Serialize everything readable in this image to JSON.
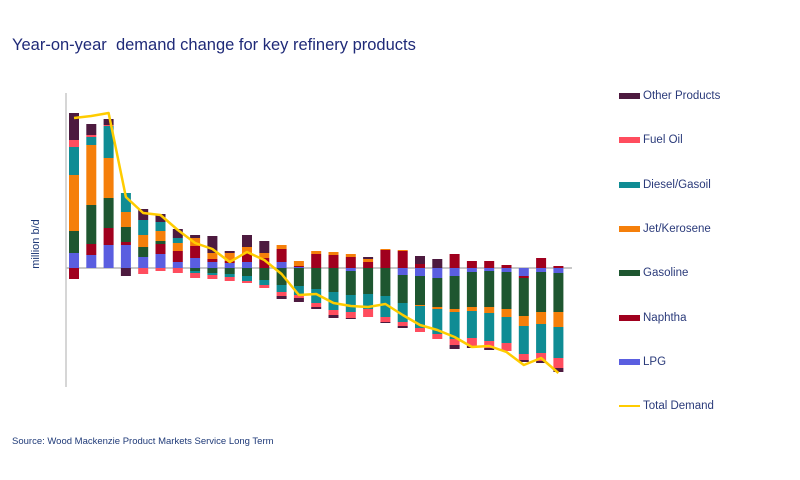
{
  "chart_data": {
    "type": "bar",
    "stacked": true,
    "title": "Year-on-year  demand change for key refinery products",
    "ylabel": "million b/d",
    "xlabel": "",
    "ylim": [
      -1.19,
      1.75
    ],
    "grid": false,
    "legend_position": "right",
    "source": "Source: Wood Mackenzie Product Markets Service Long Term",
    "series": [
      {
        "name": "LPG",
        "color": "#5a5ee0",
        "values": [
          0.15,
          0.13,
          0.23,
          0.23,
          0.11,
          0.14,
          0.06,
          0.1,
          0.06,
          0.05,
          0.06,
          0,
          0.06,
          0.01,
          0,
          0,
          -0.03,
          0,
          0,
          -0.07,
          -0.08,
          -0.1,
          -0.08,
          -0.04,
          -0.03,
          -0.04,
          -0.08,
          -0.04,
          -0.05
        ]
      },
      {
        "name": "Naphtha",
        "color": "#a0001e",
        "values": [
          -0.11,
          0.11,
          0.17,
          0.03,
          0,
          0.1,
          0.11,
          0.12,
          0.03,
          0.02,
          0.09,
          0.1,
          0.13,
          0.01,
          0.14,
          0.13,
          0.11,
          0.06,
          0.18,
          0.17,
          0.04,
          0,
          0.14,
          0.07,
          0.07,
          0.03,
          -0.02,
          0.1,
          0.02
        ]
      },
      {
        "name": "Gasoline",
        "color": "#1e5630",
        "values": [
          0.22,
          0.39,
          0.3,
          0.15,
          0.1,
          0.03,
          0,
          -0.03,
          -0.05,
          -0.06,
          -0.08,
          -0.12,
          -0.17,
          -0.18,
          -0.21,
          -0.24,
          -0.24,
          -0.26,
          -0.28,
          -0.28,
          -0.29,
          -0.29,
          -0.33,
          -0.35,
          -0.36,
          -0.37,
          -0.38,
          -0.4,
          -0.39
        ]
      },
      {
        "name": "Jet/Kerosene",
        "color": "#f57f0a",
        "values": [
          0.56,
          0.6,
          0.4,
          0.15,
          0.12,
          0.1,
          0.08,
          0.08,
          0.06,
          0.08,
          0.06,
          0.05,
          0.04,
          0.05,
          0.03,
          0.03,
          0.03,
          0.03,
          0.01,
          0.01,
          -0.01,
          -0.02,
          -0.03,
          -0.04,
          -0.06,
          -0.08,
          -0.1,
          -0.12,
          -0.15
        ]
      },
      {
        "name": "Diesel/Gasoil",
        "color": "#0f8c94",
        "values": [
          0.28,
          0.08,
          0.32,
          0.19,
          0.15,
          0.09,
          0.05,
          -0.02,
          -0.02,
          -0.03,
          -0.05,
          -0.05,
          -0.07,
          -0.09,
          -0.14,
          -0.18,
          -0.17,
          -0.15,
          -0.21,
          -0.19,
          -0.22,
          -0.25,
          -0.27,
          -0.27,
          -0.28,
          -0.26,
          -0.28,
          -0.29,
          -0.31
        ]
      },
      {
        "name": "Fuel Oil",
        "color": "#ff4d5e",
        "values": [
          0.07,
          0.02,
          0.01,
          0,
          -0.06,
          -0.03,
          -0.05,
          -0.05,
          -0.04,
          -0.04,
          -0.02,
          -0.03,
          -0.04,
          -0.03,
          -0.04,
          -0.05,
          -0.06,
          -0.08,
          -0.05,
          -0.04,
          -0.04,
          -0.05,
          -0.06,
          -0.08,
          -0.07,
          -0.08,
          -0.06,
          -0.08,
          -0.1
        ]
      },
      {
        "name": "Other Products",
        "color": "#4d1a3f",
        "values": [
          0.27,
          0.11,
          0.06,
          -0.08,
          0.11,
          0.08,
          0.09,
          0.03,
          0.17,
          0.02,
          0.12,
          0.12,
          -0.03,
          -0.04,
          -0.02,
          -0.03,
          -0.01,
          0.02,
          -0.01,
          -0.02,
          0.08,
          0.09,
          -0.04,
          -0.02,
          -0.02,
          0,
          -0.02,
          -0.02,
          -0.04
        ]
      }
    ],
    "line": {
      "name": "Total Demand",
      "color": "#ffcc00",
      "values": [
        1.5,
        1.52,
        1.55,
        0.71,
        0.55,
        0.53,
        0.38,
        0.25,
        0.19,
        0.06,
        0.16,
        0.08,
        -0.06,
        -0.27,
        -0.26,
        -0.35,
        -0.38,
        -0.39,
        -0.36,
        -0.47,
        -0.57,
        -0.62,
        -0.69,
        -0.79,
        -0.78,
        -0.84,
        -0.97,
        -0.9,
        -1.05
      ]
    },
    "legend_order": [
      "Other Products",
      "Fuel Oil",
      "Diesel/Gasoil",
      "Jet/Kerosene",
      "Gasoline",
      "Naphtha",
      "LPG",
      "Total Demand"
    ]
  }
}
